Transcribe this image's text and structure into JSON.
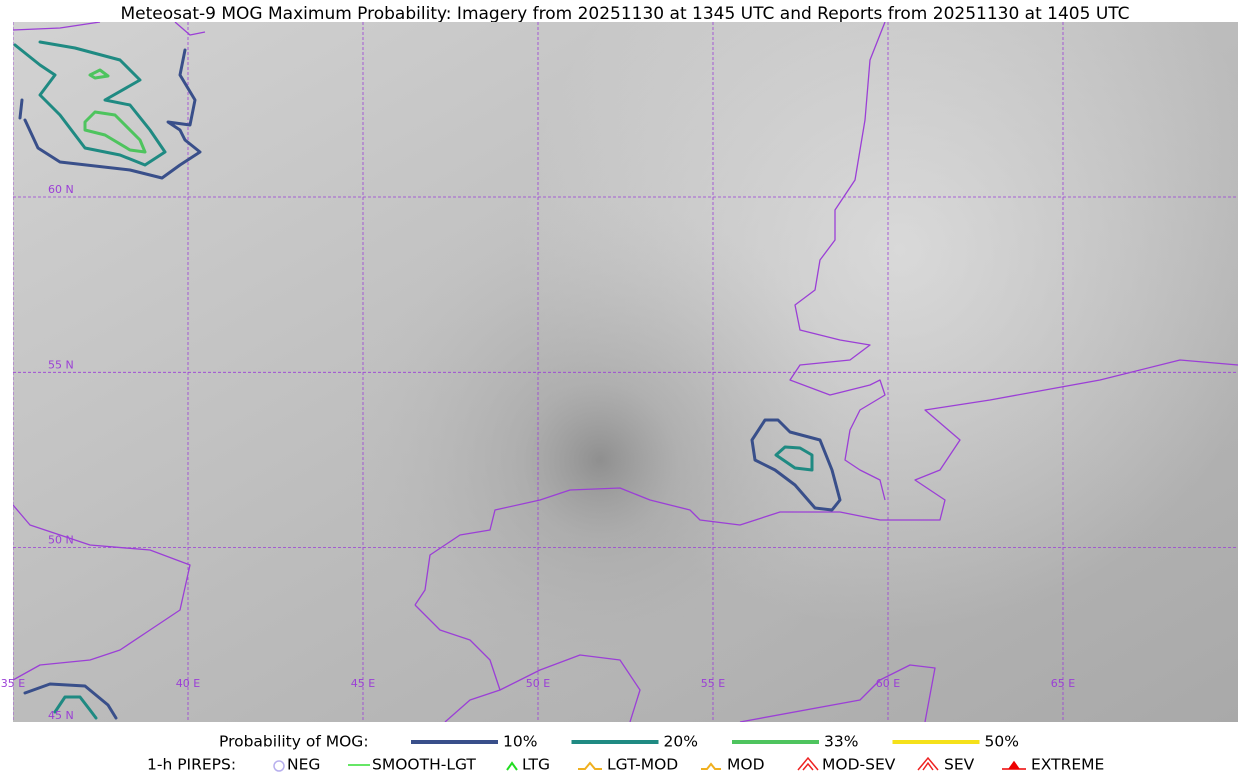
{
  "header": {
    "title": "Meteosat-9 MOG Maximum Probability: Imagery from 20251130 at 1345 UTC and Reports from 20251130 at 1405 UTC"
  },
  "map": {
    "lat_labels": [
      "60 N",
      "55 N",
      "50 N",
      "45 N"
    ],
    "lon_labels": [
      "35 E",
      "40 E",
      "45 E",
      "50 E",
      "55 E",
      "60 E",
      "65 E"
    ]
  },
  "legend": {
    "probability": {
      "label": "Probability of MOG:",
      "items": [
        {
          "label": "10%",
          "color": "#394f8a"
        },
        {
          "label": "20%",
          "color": "#1f8a82"
        },
        {
          "label": "33%",
          "color": "#4ec45e"
        },
        {
          "label": "50%",
          "color": "#f5e11a"
        }
      ]
    },
    "pireps": {
      "label": "1-h PIREPS:",
      "items": [
        {
          "label": "NEG",
          "color": "#b8b0ee"
        },
        {
          "label": "SMOOTH-LGT",
          "color": "#33dd33"
        },
        {
          "label": "LTG",
          "color": "#22dd22"
        },
        {
          "label": "LGT-MOD",
          "color": "#f0b020"
        },
        {
          "label": "MOD",
          "color": "#f0b020"
        },
        {
          "label": "MOD-SEV",
          "color": "#ee2222"
        },
        {
          "label": "SEV",
          "color": "#ee2222"
        },
        {
          "label": "EXTREME",
          "color": "#ee0000"
        }
      ]
    }
  }
}
